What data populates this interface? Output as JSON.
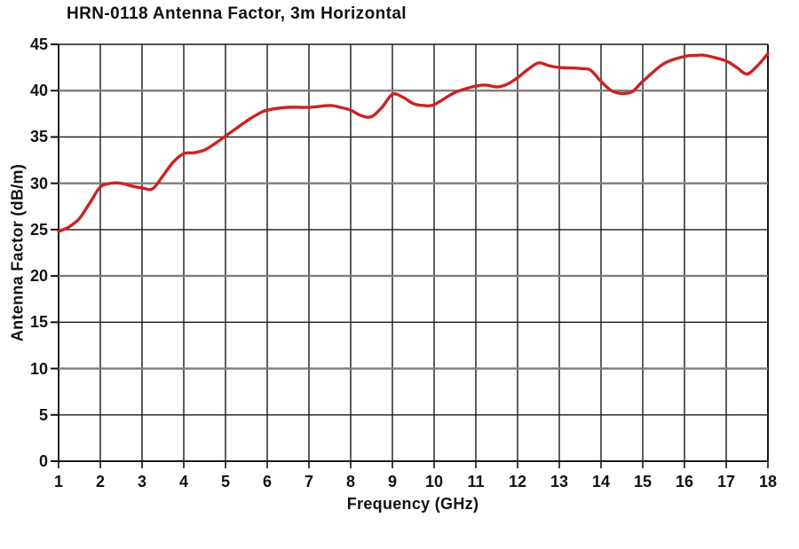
{
  "title": "HRN-0118 Antenna Factor, 3m Horizontal",
  "colors": {
    "line": "#cc2222",
    "grid_minor": "#1a1a1a",
    "grid_major": "#7d7d7d",
    "axis": "#111111",
    "text": "#111111",
    "background": "#ffffff"
  },
  "chart_data": {
    "type": "line",
    "title": "HRN-0118 Antenna Factor, 3m Horizontal",
    "xlabel": "Frequency (GHz)",
    "ylabel": "Antenna Factor (dB/m)",
    "xlim": [
      1,
      18
    ],
    "ylim": [
      0,
      45
    ],
    "x_ticks": [
      1,
      2,
      3,
      4,
      5,
      6,
      7,
      8,
      9,
      10,
      11,
      12,
      13,
      14,
      15,
      16,
      17,
      18
    ],
    "y_ticks": [
      0,
      5,
      10,
      15,
      20,
      25,
      30,
      35,
      40,
      45
    ],
    "grid": "on",
    "legend": "none",
    "series": [
      {
        "name": "Antenna Factor",
        "color": "#cc2222",
        "x": [
          1,
          1.25,
          1.5,
          1.75,
          2,
          2.25,
          2.5,
          2.75,
          3,
          3.25,
          3.5,
          3.75,
          4,
          4.25,
          4.5,
          4.75,
          5,
          5.25,
          5.5,
          5.75,
          6,
          6.5,
          7,
          7.5,
          7.75,
          8,
          8.25,
          8.5,
          8.75,
          9,
          9.25,
          9.5,
          9.75,
          10,
          10.5,
          11,
          11.25,
          11.5,
          11.75,
          12,
          12.25,
          12.5,
          12.75,
          13,
          13.5,
          13.75,
          14,
          14.25,
          14.5,
          14.75,
          15,
          15.5,
          16,
          16.25,
          16.5,
          17,
          17.25,
          17.5,
          17.75,
          18
        ],
        "y": [
          24.8,
          25.3,
          26.2,
          27.9,
          29.6,
          30.0,
          30.0,
          29.7,
          29.5,
          29.4,
          30.8,
          32.3,
          33.2,
          33.3,
          33.6,
          34.3,
          35.1,
          35.9,
          36.7,
          37.4,
          37.9,
          38.2,
          38.2,
          38.4,
          38.2,
          37.9,
          37.3,
          37.2,
          38.2,
          39.6,
          39.3,
          38.6,
          38.4,
          38.5,
          39.8,
          40.5,
          40.6,
          40.4,
          40.7,
          41.4,
          42.3,
          43.0,
          42.7,
          42.5,
          42.4,
          42.2,
          41.0,
          40.0,
          39.7,
          39.9,
          41.0,
          42.9,
          43.7,
          43.8,
          43.8,
          43.2,
          42.5,
          41.8,
          42.7,
          44.0
        ]
      }
    ]
  }
}
